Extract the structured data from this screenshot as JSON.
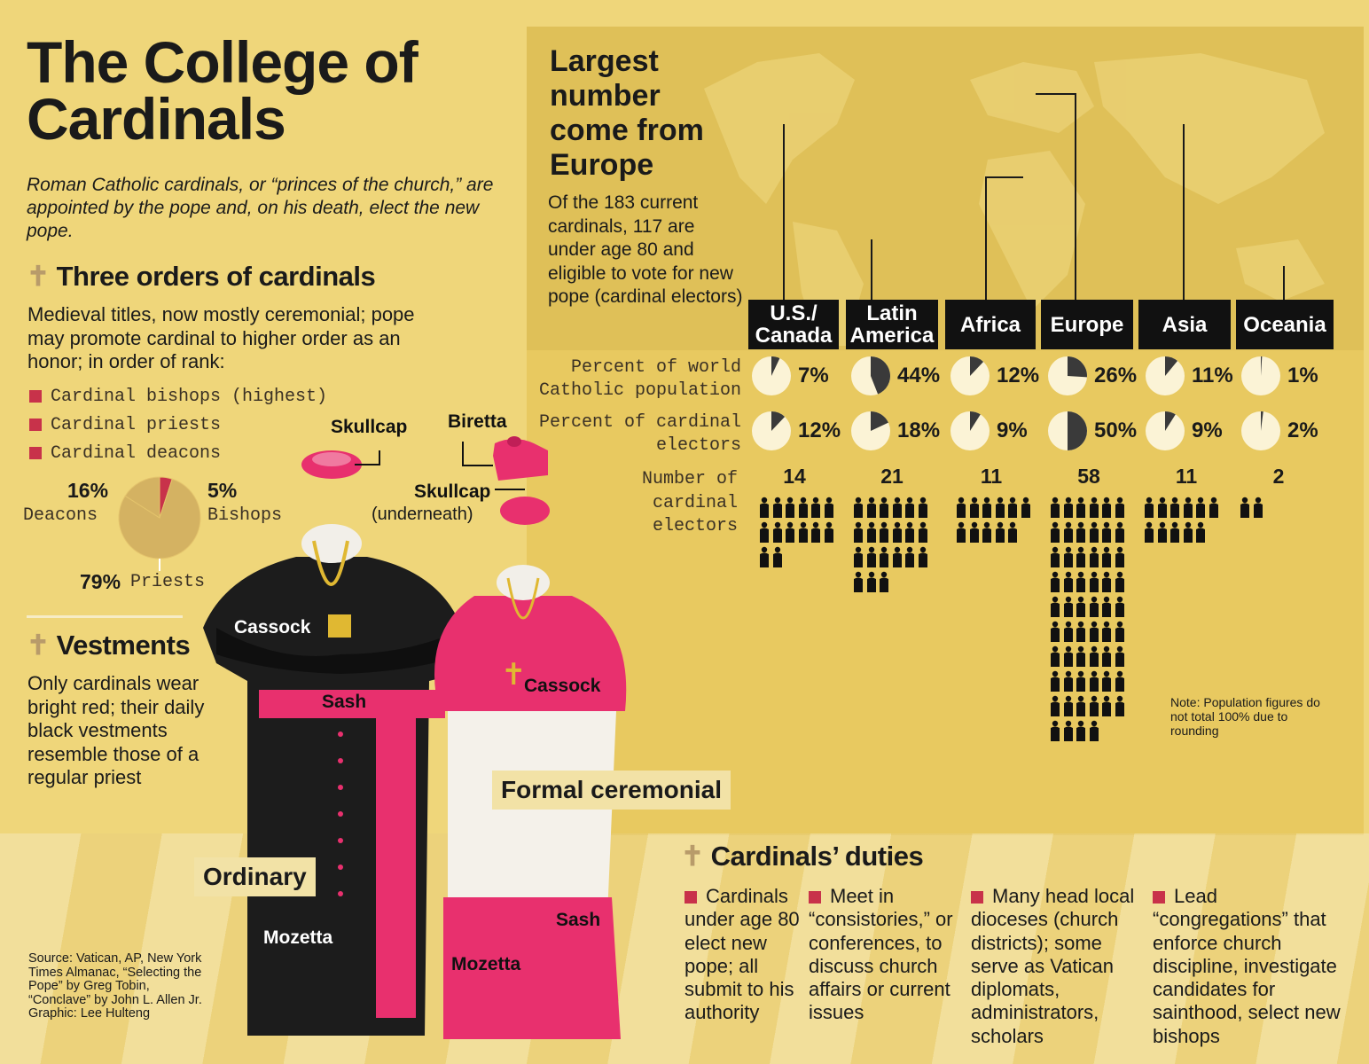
{
  "title": "The College of Cardinals",
  "intro": "Roman Catholic cardinals, or “princes of the church,” are appointed by the pope and, on his death, elect the new pope.",
  "orders": {
    "heading": "Three orders of cardinals",
    "description": "Medieval titles, now mostly ceremonial; pope may promote cardinal to higher order as an honor; in order of rank:",
    "items": [
      "Cardinal bishops (highest)",
      "Cardinal priests",
      "Cardinal deacons"
    ],
    "pie_labels": {
      "deacons_pct": "16%",
      "deacons": "Deacons",
      "bishops_pct": "5%",
      "bishops": "Bishops",
      "priests_pct": "79%",
      "priests": "Priests"
    }
  },
  "vestments": {
    "heading": "Vestments",
    "description": "Only cardinals wear bright red; their daily black vestments resemble those of a regular priest",
    "labels": {
      "skullcap": "Skullcap",
      "biretta": "Biretta",
      "skullcap_under": "Skullcap",
      "underneath": "(underneath)",
      "cassock_black": "Cassock",
      "sash_black": "Sash",
      "mozetta_black": "Mozetta",
      "cassock_red": "Cassock",
      "sash_red": "Sash",
      "mozetta_red": "Mozetta",
      "ordinary": "Ordinary",
      "formal": "Formal ceremonial"
    },
    "colors": {
      "black": "#1c1c1c",
      "red": "#e8306e",
      "white": "#f4f1ea",
      "gold": "#e0b832"
    }
  },
  "map": {
    "heading": "Largest number come from Europe",
    "description": "Of the 183 current cardinals, 117 are under age 80 and eligible to vote for new pope (cardinal electors)",
    "row_labels": {
      "population": "Percent of world Catholic population",
      "electors": "Percent of cardinal electors",
      "number": "Number of cardinal electors"
    },
    "note": "Note: Population figures do not total 100% due to rounding"
  },
  "chart_data": [
    {
      "type": "pie",
      "title": "Three orders of cardinals",
      "categories": [
        "Bishops",
        "Priests",
        "Deacons"
      ],
      "values": [
        5,
        79,
        16
      ],
      "colors": [
        "#c8324a",
        "#d4b262",
        "#d4b262"
      ]
    },
    {
      "type": "table",
      "title": "Largest number come from Europe",
      "categories": [
        "U.S./ Canada",
        "Latin America",
        "Africa",
        "Europe",
        "Asia",
        "Oceania"
      ],
      "series": [
        {
          "name": "Percent of world Catholic population",
          "values": [
            7,
            44,
            12,
            26,
            11,
            1
          ],
          "labels": [
            "7%",
            "44%",
            "12%",
            "26%",
            "11%",
            "1%"
          ]
        },
        {
          "name": "Percent of cardinal electors",
          "values": [
            12,
            18,
            9,
            50,
            9,
            2
          ],
          "labels": [
            "12%",
            "18%",
            "9%",
            "50%",
            "9%",
            "2%"
          ]
        },
        {
          "name": "Number of cardinal electors",
          "values": [
            14,
            21,
            11,
            58,
            11,
            2
          ],
          "labels": [
            "14",
            "21",
            "11",
            "58",
            "11",
            "2"
          ]
        }
      ]
    }
  ],
  "duties": {
    "heading": "Cardinals’ duties",
    "items": [
      "Cardinals under age 80 elect new pope; all submit to his authority",
      "Meet in “consistories,” or conferences, to discuss church affairs or current issues",
      "Many head local dioceses (church districts); some serve as Vatican diplomats, administrators, scholars",
      "Lead “congregations” that enforce church discipline, investigate candidates for sainthood, select new bishops"
    ]
  },
  "source": "Source: Vatican, AP, New York Times Almanac, “Selecting the Pope” by Greg Tobin, “Conclave” by John L. Allen Jr. Graphic: Lee Hulteng"
}
